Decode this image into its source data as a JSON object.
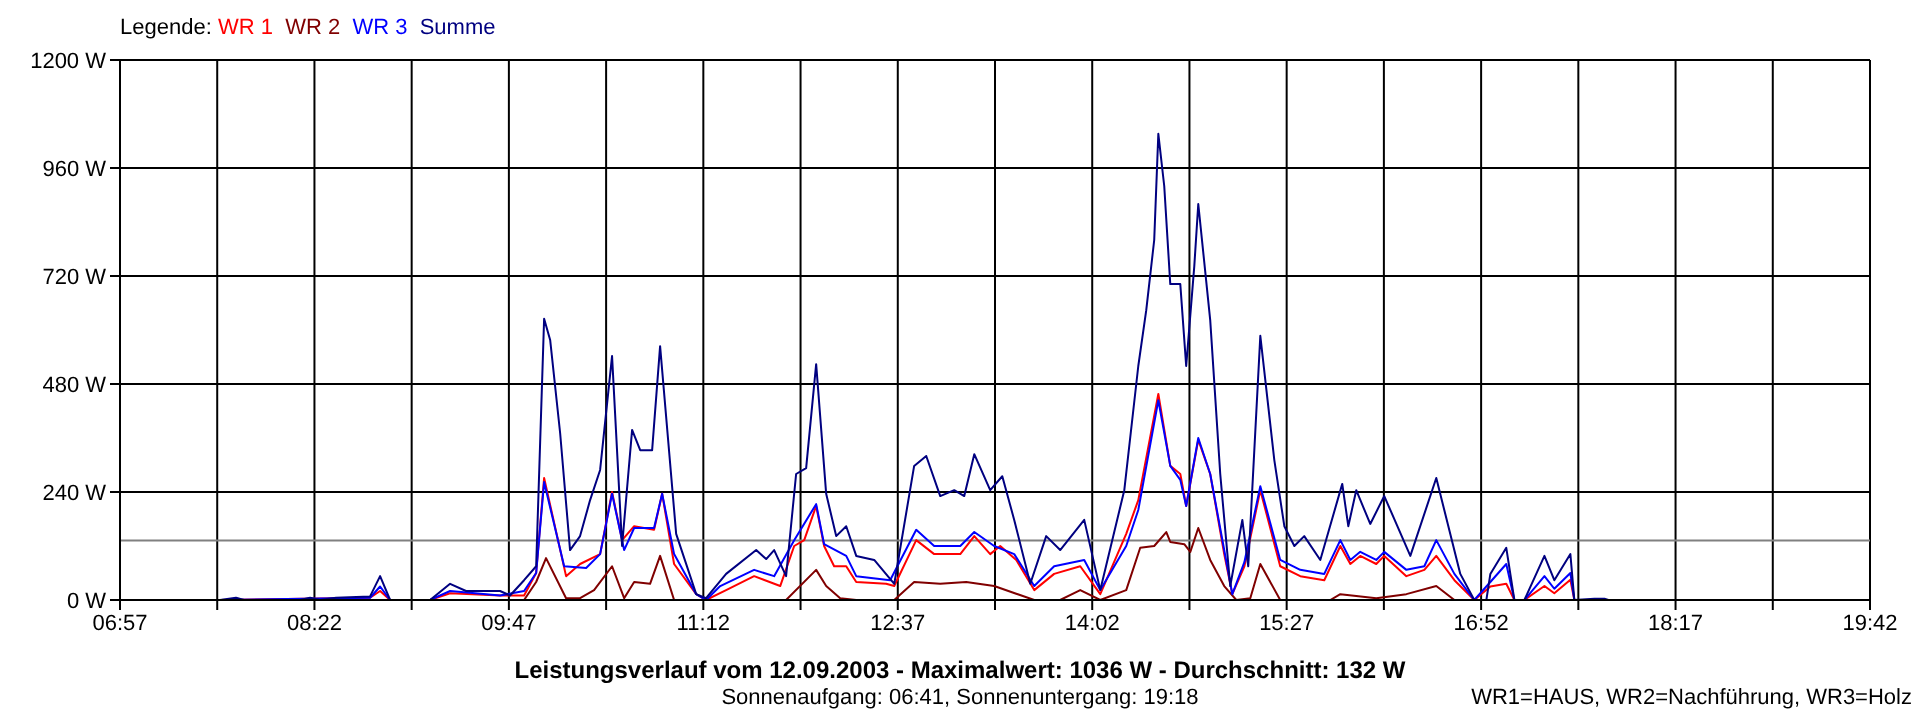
{
  "chart_data": {
    "type": "line",
    "title": "Leistungsverlauf vom 12.09.2003 - Maximalwert: 1036 W - Durchschnitt: 132 W",
    "subtitle": "Sonnenaufgang: 06:41, Sonnenuntergang: 19:18",
    "annotations": [
      "WR1=HAUS, WR2=Nachführung, WR3=Holz"
    ],
    "legend_title": "Legende:",
    "legend": "top left",
    "grid": true,
    "xlim": [
      6.95,
      19.7
    ],
    "xticks": [
      {
        "value": 6.95,
        "label": "06:57"
      },
      {
        "value": 7.6583,
        "label": null
      },
      {
        "value": 8.3667,
        "label": "08:22"
      },
      {
        "value": 9.075,
        "label": null
      },
      {
        "value": 9.7833,
        "label": "09:47"
      },
      {
        "value": 10.4917,
        "label": null
      },
      {
        "value": 11.2,
        "label": "11:12"
      },
      {
        "value": 11.9083,
        "label": null
      },
      {
        "value": 12.6167,
        "label": "12:37"
      },
      {
        "value": 13.325,
        "label": null
      },
      {
        "value": 14.0333,
        "label": "14:02"
      },
      {
        "value": 14.7417,
        "label": null
      },
      {
        "value": 15.45,
        "label": "15:27"
      },
      {
        "value": 16.1583,
        "label": null
      },
      {
        "value": 16.8667,
        "label": "16:52"
      },
      {
        "value": 17.575,
        "label": null
      },
      {
        "value": 18.2833,
        "label": "18:17"
      },
      {
        "value": 18.9917,
        "label": null
      },
      {
        "value": 19.7,
        "label": "19:42"
      }
    ],
    "ylim": [
      0,
      1200
    ],
    "yticks": [
      {
        "value": 0,
        "label": "0 W"
      },
      {
        "value": 240,
        "label": "240 W"
      },
      {
        "value": 480,
        "label": "480 W"
      },
      {
        "value": 720,
        "label": "720 W"
      },
      {
        "value": 960,
        "label": "960 W"
      },
      {
        "value": 1200,
        "label": "1200 W"
      }
    ],
    "ref_lines": [
      {
        "axis": "y",
        "value": 132,
        "label": null,
        "color": "#808080"
      }
    ],
    "series": [
      {
        "name": "WR 1",
        "color": "#ff0000",
        "x": [
          7.679,
          8.772,
          8.845,
          8.918,
          9.209,
          9.355,
          9.719,
          9.894,
          9.982,
          10.04,
          10.2,
          10.302,
          10.448,
          10.535,
          10.608,
          10.696,
          10.841,
          10.9,
          10.987,
          11.148,
          11.22,
          11.366,
          11.57,
          11.76,
          11.862,
          11.935,
          12.022,
          12.08,
          12.153,
          12.241,
          12.314,
          12.532,
          12.591,
          12.751,
          12.882,
          13.072,
          13.174,
          13.29,
          13.363,
          13.48,
          13.611,
          13.756,
          13.946,
          14.092,
          14.281,
          14.369,
          14.515,
          14.602,
          14.675,
          14.718,
          14.806,
          14.893,
          14.995,
          15.054,
          15.142,
          15.258,
          15.403,
          15.549,
          15.724,
          15.841,
          15.914,
          15.986,
          16.103,
          16.161,
          16.322,
          16.453,
          16.54,
          16.672,
          16.817,
          16.934,
          17.05,
          17.109,
          17.182,
          17.328,
          17.4,
          17.517,
          17.546
        ],
        "values": [
          0,
          5,
          20,
          0,
          0,
          15,
          10,
          10,
          60,
          271,
          53,
          80,
          102,
          240,
          133,
          164,
          156,
          236,
          80,
          13,
          0,
          22,
          53,
          31,
          120,
          133,
          209,
          120,
          75,
          75,
          40,
          36,
          31,
          133,
          102,
          102,
          142,
          102,
          120,
          89,
          22,
          58,
          75,
          13,
          147,
          222,
          458,
          298,
          280,
          209,
          356,
          280,
          102,
          13,
          75,
          244,
          75,
          53,
          44,
          120,
          80,
          98,
          80,
          98,
          53,
          67,
          98,
          44,
          0,
          30,
          36,
          0,
          0,
          31,
          15,
          45,
          0
        ]
      },
      {
        "name": "WR 2",
        "color": "#800000",
        "x": [
          9.894,
          9.982,
          10.054,
          10.2,
          10.302,
          10.404,
          10.535,
          10.623,
          10.696,
          10.812,
          10.885,
          10.987,
          11.803,
          12.022,
          12.095,
          12.197,
          12.314,
          12.591,
          12.736,
          12.926,
          13.115,
          13.319,
          13.611,
          13.8,
          13.946,
          14.092,
          14.281,
          14.383,
          14.485,
          14.573,
          14.602,
          14.704,
          14.748,
          14.806,
          14.893,
          14.995,
          15.083,
          15.185,
          15.258,
          15.403,
          15.768,
          15.841,
          15.957,
          16.103,
          16.322,
          16.54,
          16.672
        ],
        "values": [
          0,
          40,
          93,
          4,
          4,
          22,
          75,
          4,
          40,
          36,
          98,
          0,
          0,
          67,
          31,
          4,
          0,
          0,
          40,
          36,
          40,
          31,
          0,
          0,
          22,
          0,
          22,
          116,
          120,
          151,
          129,
          124,
          107,
          160,
          89,
          31,
          0,
          4,
          80,
          0,
          0,
          13,
          9,
          4,
          13,
          31,
          0
        ]
      },
      {
        "name": "WR 3",
        "color": "#0000ff",
        "x": [
          7.679,
          8.772,
          8.845,
          8.918,
          9.209,
          9.355,
          9.719,
          9.894,
          9.982,
          10.04,
          10.186,
          10.346,
          10.448,
          10.535,
          10.623,
          10.696,
          10.841,
          10.9,
          10.987,
          11.148,
          11.22,
          11.323,
          11.57,
          11.716,
          11.862,
          12.022,
          12.08,
          12.241,
          12.314,
          12.561,
          12.751,
          12.882,
          13.072,
          13.174,
          13.319,
          13.465,
          13.611,
          13.756,
          13.975,
          14.092,
          14.281,
          14.369,
          14.515,
          14.602,
          14.675,
          14.718,
          14.806,
          14.893,
          14.995,
          15.054,
          15.142,
          15.258,
          15.403,
          15.549,
          15.724,
          15.841,
          15.914,
          15.986,
          16.103,
          16.161,
          16.322,
          16.453,
          16.54,
          16.672,
          16.817,
          16.934,
          17.05,
          17.109,
          17.182,
          17.328,
          17.4,
          17.517,
          17.546
        ],
        "values": [
          0,
          5,
          30,
          0,
          0,
          20,
          10,
          20,
          60,
          262,
          75,
          71,
          102,
          236,
          111,
          160,
          160,
          236,
          102,
          13,
          0,
          31,
          67,
          53,
          133,
          213,
          124,
          98,
          53,
          44,
          156,
          120,
          120,
          151,
          120,
          102,
          31,
          75,
          89,
          22,
          120,
          200,
          444,
          298,
          267,
          209,
          360,
          280,
          111,
          13,
          84,
          253,
          89,
          67,
          58,
          133,
          89,
          107,
          89,
          107,
          67,
          75,
          133,
          58,
          0,
          40,
          80,
          0,
          0,
          53,
          25,
          60,
          0
        ]
      },
      {
        "name": "Summe",
        "color": "#000080",
        "x": [
          7.679,
          7.795,
          7.854,
          8.262,
          8.335,
          8.408,
          8.524,
          8.772,
          8.845,
          8.918,
          9.209,
          9.355,
          9.471,
          9.719,
          9.792,
          9.894,
          9.982,
          10.04,
          10.084,
          10.157,
          10.229,
          10.302,
          10.375,
          10.448,
          10.535,
          10.608,
          10.681,
          10.74,
          10.827,
          10.885,
          11.002,
          11.148,
          11.22,
          11.366,
          11.585,
          11.658,
          11.716,
          11.803,
          11.876,
          11.949,
          12.022,
          12.095,
          12.168,
          12.241,
          12.314,
          12.445,
          12.591,
          12.736,
          12.824,
          12.926,
          13.028,
          13.101,
          13.174,
          13.29,
          13.378,
          13.465,
          13.582,
          13.698,
          13.8,
          13.975,
          14.092,
          14.267,
          14.369,
          14.427,
          14.485,
          14.515,
          14.558,
          14.602,
          14.675,
          14.718,
          14.777,
          14.806,
          14.893,
          14.966,
          15.039,
          15.127,
          15.17,
          15.258,
          15.36,
          15.433,
          15.506,
          15.578,
          15.695,
          15.855,
          15.899,
          15.957,
          16.059,
          16.161,
          16.351,
          16.54,
          16.715,
          16.817,
          16.905,
          16.934,
          17.05,
          17.109,
          17.182,
          17.328,
          17.4,
          17.517,
          17.546,
          17.692,
          17.765,
          17.794
        ],
        "values": [
          0,
          5,
          0,
          0,
          5,
          0,
          5,
          8,
          53,
          0,
          0,
          36,
          20,
          20,
          10,
          44,
          75,
          625,
          578,
          370,
          111,
          142,
          222,
          289,
          542,
          120,
          378,
          333,
          333,
          564,
          147,
          13,
          4,
          58,
          111,
          91,
          111,
          53,
          280,
          293,
          524,
          236,
          142,
          164,
          98,
          89,
          36,
          298,
          320,
          231,
          244,
          231,
          324,
          244,
          275,
          178,
          36,
          142,
          111,
          178,
          22,
          244,
          520,
          644,
          800,
          1036,
          920,
          702,
          702,
          520,
          742,
          880,
          622,
          280,
          31,
          178,
          75,
          587,
          311,
          164,
          120,
          142,
          89,
          258,
          164,
          244,
          169,
          231,
          98,
          271,
          58,
          0,
          0,
          58,
          116,
          0,
          0,
          98,
          44,
          102,
          0,
          3,
          3,
          0
        ]
      }
    ]
  }
}
